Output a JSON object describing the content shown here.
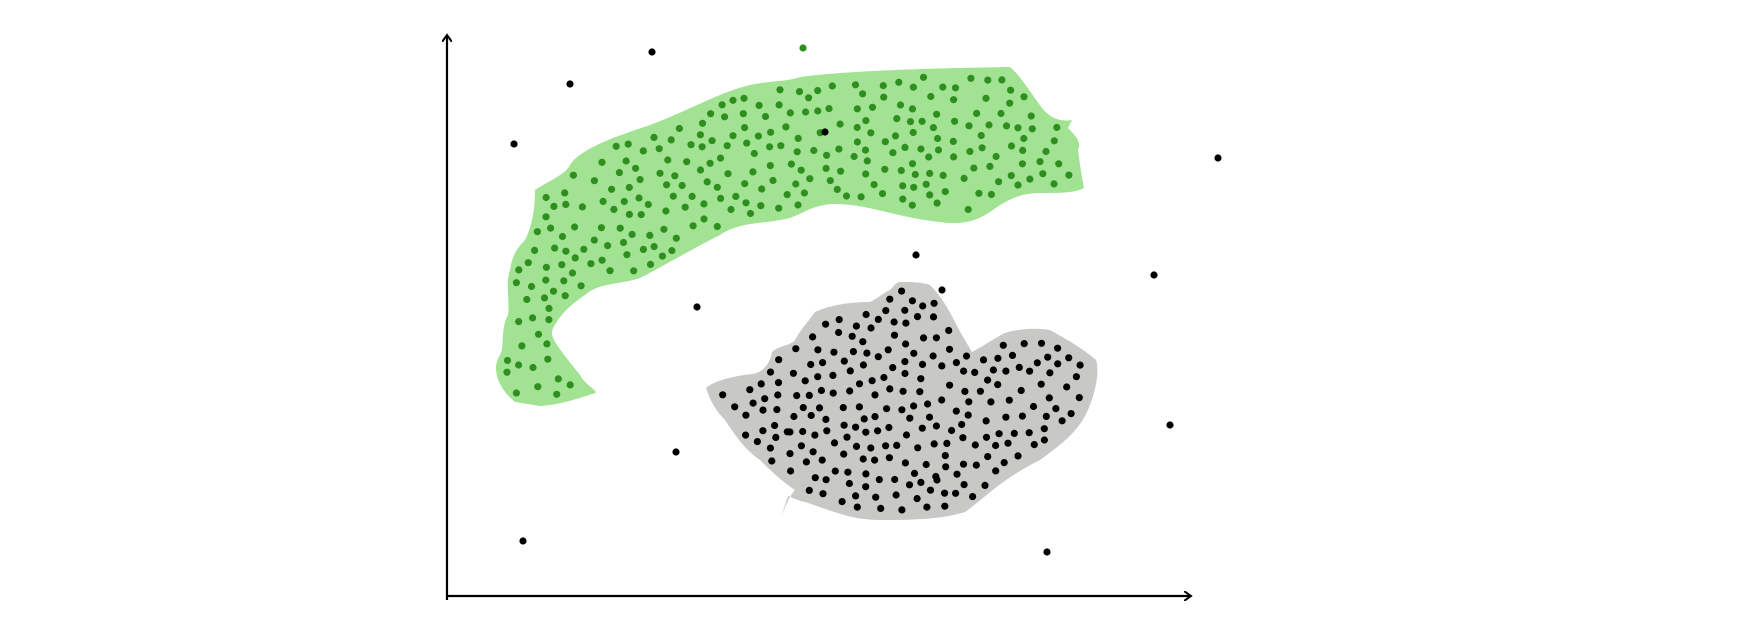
{
  "colors": {
    "background": "#ffffff",
    "axis": "#000000",
    "cluster_a_fill": "#a2e393",
    "cluster_a_points": "#2f8f1e",
    "cluster_b_fill": "#c8c9c6",
    "cluster_b_points": "#000000",
    "noise_points": "#000000",
    "stray_green_point": "#2f8f1e"
  },
  "diagram": {
    "kind": "density-clustering-illustration",
    "x_axis_arrow": true,
    "y_axis_arrow": true,
    "axis_labels_shown": false,
    "clusters": [
      {
        "id": "cluster-a",
        "shape": "curved band",
        "point_color": "green",
        "region_color": "light green"
      },
      {
        "id": "cluster-b",
        "shape": "blob",
        "point_color": "black",
        "region_color": "light gray"
      }
    ],
    "noise": {
      "point_color": "black",
      "count_visible": 15
    }
  }
}
